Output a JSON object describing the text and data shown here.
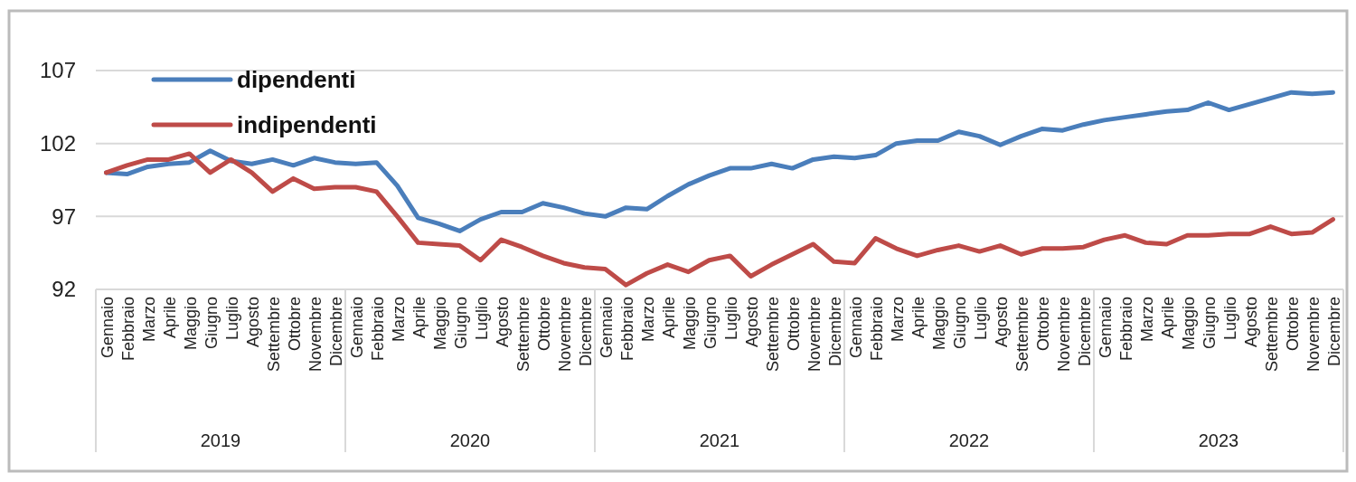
{
  "chart_data": {
    "type": "line",
    "categories": [
      "Gennaio",
      "Febbraio",
      "Marzo",
      "Aprile",
      "Maggio",
      "Giugno",
      "Luglio",
      "Agosto",
      "Settembre",
      "Ottobre",
      "Novembre",
      "Dicembre",
      "Gennaio",
      "Febbraio",
      "Marzo",
      "Aprile",
      "Maggio",
      "Giugno",
      "Luglio",
      "Agosto",
      "Settembre",
      "Ottobre",
      "Novembre",
      "Dicembre",
      "Gennaio",
      "Febbraio",
      "Marzo",
      "Aprile",
      "Maggio",
      "Giugno",
      "Luglio",
      "Agosto",
      "Settembre",
      "Ottobre",
      "Novembre",
      "Dicembre",
      "Gennaio",
      "Febbraio",
      "Marzo",
      "Aprile",
      "Maggio",
      "Giugno",
      "Luglio",
      "Agosto",
      "Settembre",
      "Ottobre",
      "Novembre",
      "Dicembre",
      "Gennaio",
      "Febbraio",
      "Marzo",
      "Aprile",
      "Maggio",
      "Giugno",
      "Luglio",
      "Agosto",
      "Settembre",
      "Ottobre",
      "Novembre",
      "Dicembre"
    ],
    "annotations": [
      "2019",
      "2020",
      "2021",
      "2022",
      "2023"
    ],
    "series": [
      {
        "name": "dipendenti",
        "color": "#4a7ebb",
        "values": [
          100.0,
          99.9,
          100.4,
          100.6,
          100.7,
          101.5,
          100.8,
          100.6,
          100.9,
          100.5,
          101.0,
          100.7,
          100.6,
          100.7,
          99.1,
          96.9,
          96.5,
          96.0,
          96.8,
          97.3,
          97.3,
          97.9,
          97.6,
          97.2,
          97.0,
          97.6,
          97.5,
          98.4,
          99.2,
          99.8,
          100.3,
          100.3,
          100.6,
          100.3,
          100.9,
          101.1,
          101.0,
          101.2,
          102.0,
          102.2,
          102.2,
          102.8,
          102.5,
          101.9,
          102.5,
          103.0,
          102.9,
          103.3,
          103.6,
          103.8,
          104.0,
          104.2,
          104.3,
          104.8,
          104.3,
          104.7,
          105.1,
          105.5,
          105.4,
          105.5
        ]
      },
      {
        "name": "indipendenti",
        "color": "#be4b48",
        "values": [
          100.0,
          100.5,
          100.9,
          100.9,
          101.3,
          100.0,
          100.9,
          100.0,
          98.7,
          99.6,
          98.9,
          99.0,
          99.0,
          98.7,
          97.0,
          95.2,
          95.1,
          95.0,
          94.0,
          95.4,
          94.9,
          94.3,
          93.8,
          93.5,
          93.4,
          92.3,
          93.1,
          93.7,
          93.2,
          94.0,
          94.3,
          92.9,
          93.7,
          94.4,
          95.1,
          93.9,
          93.8,
          95.5,
          94.8,
          94.3,
          94.7,
          95.0,
          94.6,
          95.0,
          94.4,
          94.8,
          94.8,
          94.9,
          95.4,
          95.7,
          95.2,
          95.1,
          95.7,
          95.7,
          95.8,
          95.8,
          96.3,
          95.8,
          95.9,
          96.8
        ]
      }
    ],
    "ylim": [
      92,
      107
    ],
    "yticks": [
      92,
      97,
      102,
      107
    ],
    "grid": "y",
    "legend": "top left"
  }
}
